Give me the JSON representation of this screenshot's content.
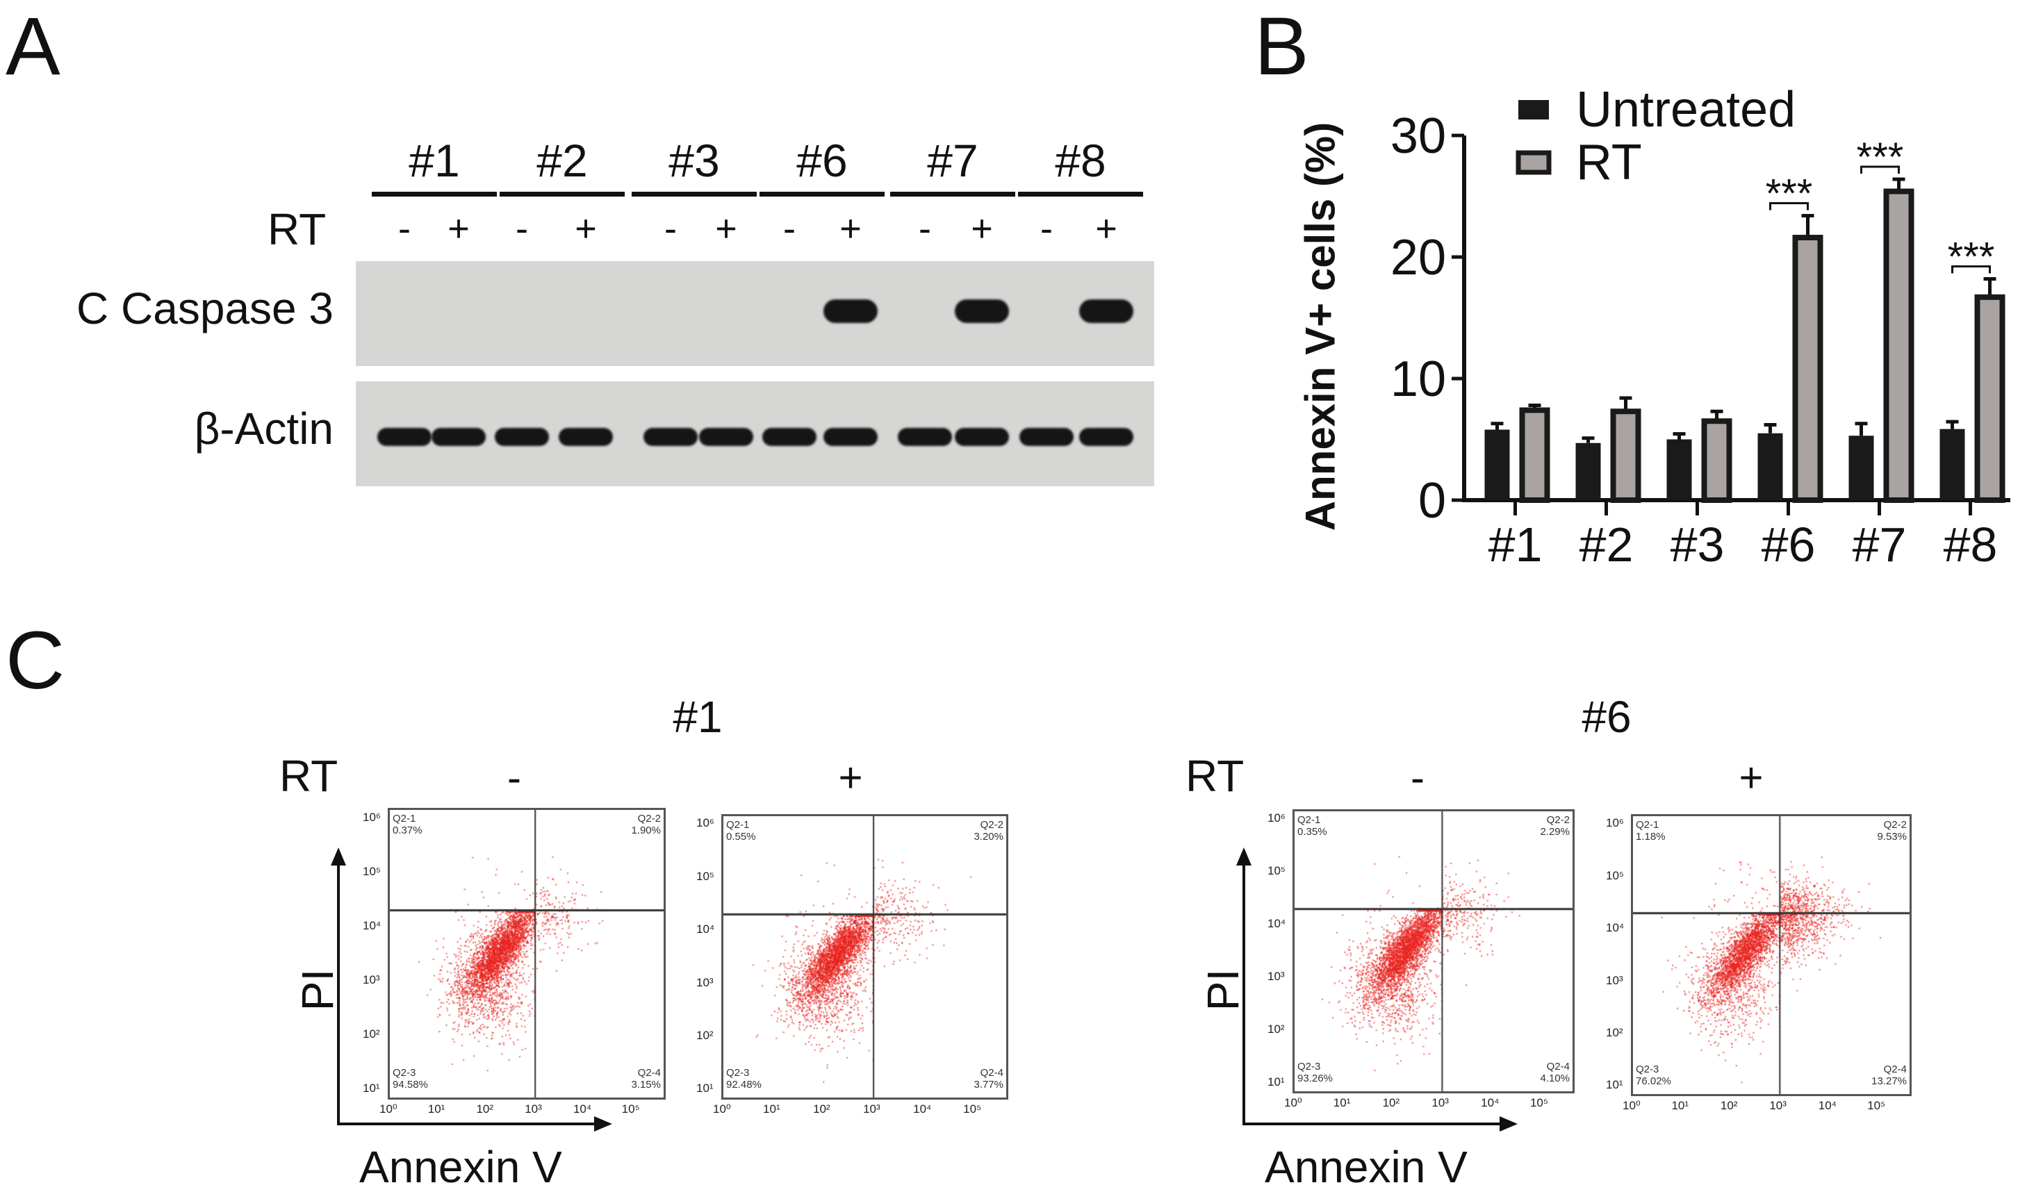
{
  "panels": {
    "a": "A",
    "b": "B",
    "c": "C"
  },
  "western_blot": {
    "samples": [
      "#1",
      "#2",
      "#3",
      "#6",
      "#7",
      "#8"
    ],
    "treatment_label": "RT",
    "signs": [
      "-",
      "+"
    ],
    "rows": [
      {
        "label": "C Caspase 3",
        "bands_present": [
          false,
          false,
          false,
          false,
          false,
          false,
          false,
          true,
          false,
          true,
          false,
          true
        ]
      },
      {
        "label": "β-Actin",
        "bands_present": [
          true,
          true,
          true,
          true,
          true,
          true,
          true,
          true,
          true,
          true,
          true,
          true
        ]
      }
    ]
  },
  "chart_data": {
    "type": "bar",
    "categories": [
      "#1",
      "#2",
      "#3",
      "#6",
      "#7",
      "#8"
    ],
    "series": [
      {
        "name": "Untreated",
        "values": [
          5.8,
          4.7,
          5.0,
          5.5,
          5.3,
          5.85
        ],
        "errors": [
          0.5,
          0.4,
          0.45,
          0.7,
          1.0,
          0.6
        ],
        "color": "#1a1a1a"
      },
      {
        "name": "RT",
        "values": [
          7.4,
          7.3,
          6.5,
          21.6,
          25.4,
          16.7
        ],
        "errors": [
          0.4,
          1.1,
          0.8,
          1.8,
          1.0,
          1.5
        ],
        "color": "#a9a4a2"
      }
    ],
    "significance": [
      "",
      "",
      "",
      "***",
      "***",
      "***"
    ],
    "ylabel": "Annexin V+ cells (%)",
    "xlabel": "",
    "ylim": [
      0,
      30
    ],
    "yticks": [
      0,
      10,
      20,
      30
    ],
    "legend": "top-left",
    "grid": false
  },
  "flow": {
    "treatment_label": "RT",
    "x_axis_label": "Annexin V",
    "y_axis_label": "PI",
    "x_ticks": [
      "10⁰",
      "10¹",
      "10²",
      "10³",
      "10⁴",
      "10⁵"
    ],
    "y_ticks": [
      "10¹",
      "10²",
      "10³",
      "10⁴",
      "10⁵",
      "10⁶"
    ],
    "dot_color": "#e8231f",
    "groups": [
      {
        "title": "#1",
        "plots": [
          {
            "sign": "-",
            "quadrants": {
              "q1": {
                "name": "Q2-1",
                "value": "0.37%"
              },
              "q2": {
                "name": "Q2-2",
                "value": "1.90%"
              },
              "q3": {
                "name": "Q2-3",
                "value": "94.58%"
              },
              "q4": {
                "name": "Q2-4",
                "value": "3.15%"
              }
            }
          },
          {
            "sign": "+",
            "quadrants": {
              "q1": {
                "name": "Q2-1",
                "value": "0.55%"
              },
              "q2": {
                "name": "Q2-2",
                "value": "3.20%"
              },
              "q3": {
                "name": "Q2-3",
                "value": "92.48%"
              },
              "q4": {
                "name": "Q2-4",
                "value": "3.77%"
              }
            }
          }
        ]
      },
      {
        "title": "#6",
        "plots": [
          {
            "sign": "-",
            "quadrants": {
              "q1": {
                "name": "Q2-1",
                "value": "0.35%"
              },
              "q2": {
                "name": "Q2-2",
                "value": "2.29%"
              },
              "q3": {
                "name": "Q2-3",
                "value": "93.26%"
              },
              "q4": {
                "name": "Q2-4",
                "value": "4.10%"
              }
            }
          },
          {
            "sign": "+",
            "quadrants": {
              "q1": {
                "name": "Q2-1",
                "value": "1.18%"
              },
              "q2": {
                "name": "Q2-2",
                "value": "9.53%"
              },
              "q3": {
                "name": "Q2-3",
                "value": "76.02%"
              },
              "q4": {
                "name": "Q2-4",
                "value": "13.27%"
              }
            }
          }
        ]
      }
    ]
  }
}
